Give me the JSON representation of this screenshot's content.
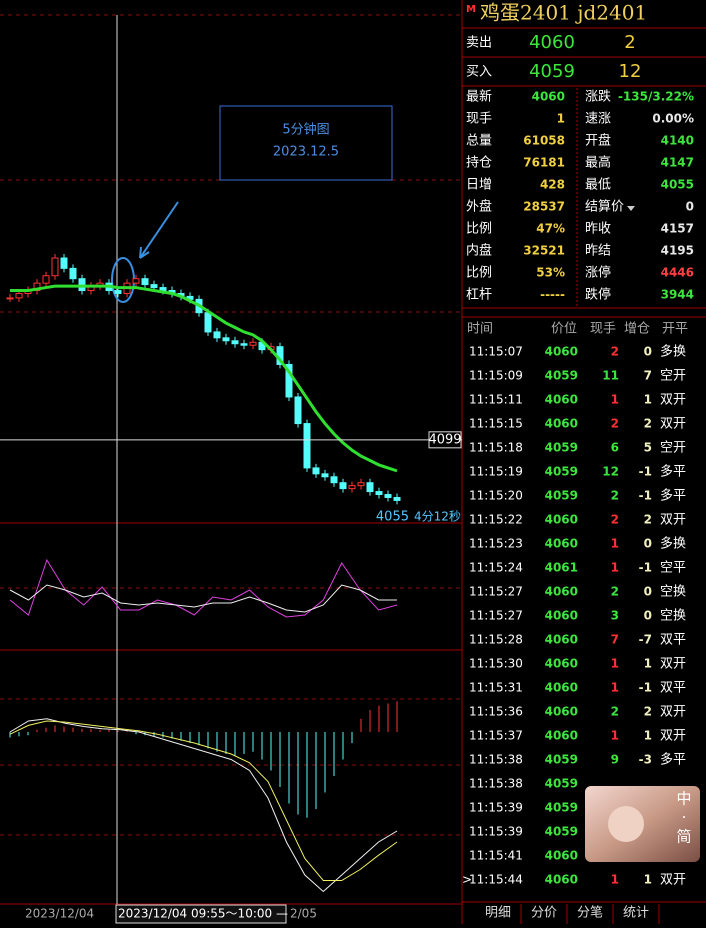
{
  "header": {
    "marker": "M",
    "title": "鸡蛋2401  jd2401"
  },
  "annotation": {
    "line1": "5分钟图",
    "line2": "2023.12.5"
  },
  "price_chart": {
    "ylim": [
      4038,
      4268
    ],
    "crosshair": 4099,
    "last_price": 4055,
    "countdown": "4分12秒",
    "closes": [
      4195,
      4198,
      4200,
      4205,
      4210,
      4222,
      4215,
      4208,
      4200,
      4203,
      4205,
      4200,
      4198,
      4205,
      4208,
      4204,
      4202,
      4200,
      4198,
      4196,
      4194,
      4185,
      4172,
      4168,
      4166,
      4164,
      4163,
      4165,
      4160,
      4162,
      4150,
      4128,
      4110,
      4080,
      4076,
      4074,
      4070,
      4066,
      4068,
      4070,
      4064,
      4062,
      4060,
      4058
    ],
    "ma": [
      4200,
      4200,
      4200,
      4201,
      4202,
      4203,
      4203,
      4203,
      4203,
      4203,
      4203,
      4203,
      4202,
      4202,
      4202,
      4201,
      4200,
      4199,
      4198,
      4196,
      4193,
      4190,
      4186,
      4182,
      4178,
      4175,
      4172,
      4170,
      4166,
      4160,
      4153,
      4145,
      4136,
      4127,
      4118,
      4110,
      4103,
      4097,
      4092,
      4088,
      4085,
      4082,
      4080,
      4078
    ]
  },
  "kdj": {
    "ylim": [
      0,
      100
    ],
    "k": [
      45,
      30,
      85,
      55,
      40,
      58,
      35,
      35,
      45,
      40,
      30,
      48,
      45,
      55,
      38,
      28,
      30,
      45,
      82,
      55,
      35,
      40
    ],
    "d": [
      55,
      45,
      60,
      55,
      48,
      52,
      42,
      40,
      42,
      40,
      38,
      42,
      42,
      48,
      42,
      35,
      33,
      40,
      60,
      55,
      45,
      45
    ]
  },
  "macd": {
    "ylim": [
      -160,
      40
    ],
    "hist": [
      -5,
      -4,
      -3,
      2,
      4,
      6,
      5,
      4,
      3,
      3,
      2,
      2,
      1,
      1,
      -2,
      -3,
      -4,
      -5,
      -6,
      -8,
      -10,
      -12,
      -15,
      -18,
      -20,
      -22,
      -20,
      -18,
      -25,
      -35,
      -50,
      -65,
      -75,
      -78,
      -70,
      -55,
      -40,
      -25,
      -10,
      12,
      20,
      24,
      26,
      28
    ],
    "dif": [
      0,
      10,
      12,
      8,
      5,
      3,
      2,
      0,
      -5,
      -10,
      -15,
      -20,
      -25,
      -35,
      -60,
      -100,
      -130,
      -145,
      -130,
      -115,
      -100,
      -90
    ],
    "dea": [
      -2,
      6,
      10,
      9,
      7,
      5,
      3,
      1,
      -2,
      -6,
      -10,
      -15,
      -20,
      -28,
      -45,
      -80,
      -115,
      -135,
      -135,
      -125,
      -112,
      -100
    ]
  },
  "footer": {
    "date1": "2023/12/04",
    "range": "2023/12/04 09:55～10:00 —",
    "date2": "2/05"
  },
  "quote": [
    {
      "label": "卖出",
      "price": "4060",
      "qty": "2"
    },
    {
      "label": "买入",
      "price": "4059",
      "qty": "12"
    }
  ],
  "stats": [
    {
      "l": "最新",
      "lv": "4060",
      "lc": "#3ce63c",
      "r": "涨跌",
      "rv": "-135/3.22%",
      "rc": "#3ce63c"
    },
    {
      "l": "现手",
      "lv": "1",
      "lc": "#f0d040",
      "r": "速涨",
      "rv": "0.00%",
      "rc": "#e8e8e8"
    },
    {
      "l": "总量",
      "lv": "61058",
      "lc": "#f0d040",
      "r": "开盘",
      "rv": "4140",
      "rc": "#3ce63c"
    },
    {
      "l": "持仓",
      "lv": "76181",
      "lc": "#f0d040",
      "r": "最高",
      "rv": "4147",
      "rc": "#3ce63c"
    },
    {
      "l": "日增",
      "lv": "428",
      "lc": "#f0d040",
      "r": "最低",
      "rv": "4055",
      "rc": "#3ce63c"
    },
    {
      "l": "外盘",
      "lv": "28537",
      "lc": "#f0d040",
      "r": "结算价",
      "rv": "0",
      "rc": "#e8e8e8"
    },
    {
      "l": "比例",
      "lv": "47%",
      "lc": "#f0d040",
      "r": "昨收",
      "rv": "4157",
      "rc": "#e8e8e8"
    },
    {
      "l": "内盘",
      "lv": "32521",
      "lc": "#f0d040",
      "r": "昨结",
      "rv": "4195",
      "rc": "#e8e8e8"
    },
    {
      "l": "比例",
      "lv": "53%",
      "lc": "#f0d040",
      "r": "涨停",
      "rv": "4446",
      "rc": "#ff4040"
    },
    {
      "l": "杠杆",
      "lv": "-----",
      "lc": "#f0d040",
      "r": "跌停",
      "rv": "3944",
      "rc": "#3ce63c"
    }
  ],
  "trades": {
    "headers": [
      "时间",
      "价位",
      "现手",
      "增仓",
      "开平"
    ],
    "rows": [
      {
        "time": "11:15:07",
        "price": "4060",
        "qty": "2",
        "change": "0",
        "type": "多换",
        "color": "#ff3232"
      },
      {
        "time": "11:15:09",
        "price": "4059",
        "qty": "11",
        "change": "7",
        "type": "空开",
        "color": "#3ce63c"
      },
      {
        "time": "11:15:11",
        "price": "4060",
        "qty": "1",
        "change": "1",
        "type": "双开",
        "color": "#ff3232"
      },
      {
        "time": "11:15:15",
        "price": "4060",
        "qty": "2",
        "change": "2",
        "type": "双开",
        "color": "#ff3232"
      },
      {
        "time": "11:15:18",
        "price": "4059",
        "qty": "6",
        "change": "5",
        "type": "空开",
        "color": "#3ce63c"
      },
      {
        "time": "11:15:19",
        "price": "4059",
        "qty": "12",
        "change": "-1",
        "type": "多平",
        "color": "#3ce63c"
      },
      {
        "time": "11:15:20",
        "price": "4059",
        "qty": "2",
        "change": "-1",
        "type": "多平",
        "color": "#3ce63c"
      },
      {
        "time": "11:15:22",
        "price": "4060",
        "qty": "2",
        "change": "2",
        "type": "双开",
        "color": "#ff3232"
      },
      {
        "time": "11:15:23",
        "price": "4060",
        "qty": "1",
        "change": "0",
        "type": "多换",
        "color": "#ff3232"
      },
      {
        "time": "11:15:24",
        "price": "4061",
        "qty": "1",
        "change": "-1",
        "type": "空平",
        "color": "#ff3232"
      },
      {
        "time": "11:15:27",
        "price": "4060",
        "qty": "2",
        "change": "0",
        "type": "空换",
        "color": "#3ce63c"
      },
      {
        "time": "11:15:27",
        "price": "4060",
        "qty": "3",
        "change": "0",
        "type": "空换",
        "color": "#3ce63c"
      },
      {
        "time": "11:15:28",
        "price": "4060",
        "qty": "7",
        "change": "-7",
        "type": "双平",
        "color": "#ff3232"
      },
      {
        "time": "11:15:30",
        "price": "4060",
        "qty": "1",
        "change": "1",
        "type": "双开",
        "color": "#ff3232"
      },
      {
        "time": "11:15:31",
        "price": "4060",
        "qty": "1",
        "change": "-1",
        "type": "双平",
        "color": "#ff3232"
      },
      {
        "time": "11:15:36",
        "price": "4060",
        "qty": "2",
        "change": "2",
        "type": "双开",
        "color": "#3ce63c"
      },
      {
        "time": "11:15:37",
        "price": "4060",
        "qty": "1",
        "change": "1",
        "type": "双开",
        "color": "#ff3232"
      },
      {
        "time": "11:15:38",
        "price": "4059",
        "qty": "9",
        "change": "-3",
        "type": "多平",
        "color": "#3ce63c"
      },
      {
        "time": "11:15:38",
        "price": "4059"
      },
      {
        "time": "11:15:39",
        "price": "4059"
      },
      {
        "time": "11:15:39",
        "price": "4059"
      },
      {
        "time": "11:15:41",
        "price": "4060"
      },
      {
        "time": "11:15:44",
        "price": "4060",
        "qty": "1",
        "change": "1",
        "type": "双开",
        "color": "#ff3232"
      }
    ]
  },
  "tabs": [
    "明细",
    "分价",
    "分笔",
    "统计"
  ],
  "avatar": [
    "中",
    "·",
    "简"
  ]
}
